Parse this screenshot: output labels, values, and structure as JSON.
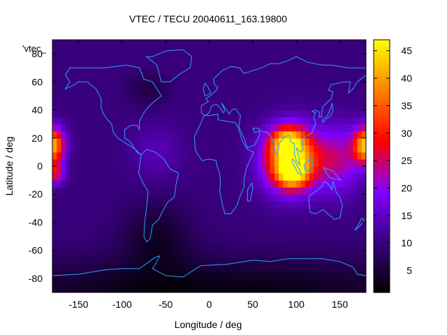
{
  "chart_data": {
    "type": "heatmap",
    "title": "VTEC / TECU 20040611_163.19800",
    "xlabel": "Longitude / deg",
    "ylabel": "Latitude / deg",
    "key_label": "'vtec_",
    "xlim": [
      -180,
      180
    ],
    "ylim": [
      -90,
      90
    ],
    "x_ticks": [
      -150,
      -100,
      -50,
      0,
      50,
      100,
      150
    ],
    "y_ticks": [
      -80,
      -60,
      -40,
      -20,
      0,
      20,
      40,
      60,
      80
    ],
    "colorbar": {
      "range": [
        1,
        47
      ],
      "ticks": [
        5,
        10,
        15,
        20,
        25,
        30,
        35,
        40,
        45
      ],
      "palette": [
        "#000000",
        "#3a0080",
        "#8000ff",
        "#ff0000",
        "#ff8000",
        "#ffff00"
      ]
    },
    "grid": {
      "lon_step_deg": 5,
      "lat_step_deg": 5,
      "background_tecu": 10,
      "enhancements": [
        {
          "name": "equatorial-anomaly-asia",
          "lon": 95,
          "lat": 5,
          "peak_tecu": 36,
          "lon_width": 32,
          "lat_width": 22
        },
        {
          "name": "north-crest-asia",
          "lon": 90,
          "lat": 18,
          "peak_tecu": 18,
          "lon_width": 18,
          "lat_width": 10
        },
        {
          "name": "south-crest-asia",
          "lon": 95,
          "lat": -5,
          "peak_tecu": 20,
          "lon_width": 16,
          "lat_width": 9
        },
        {
          "name": "pacific-dateline-north",
          "lon": -180,
          "lat": 15,
          "peak_tecu": 32,
          "lon_width": 14,
          "lat_width": 13
        },
        {
          "name": "pacific-dateline-wrap",
          "lon": 180,
          "lat": 15,
          "peak_tecu": 32,
          "lon_width": 14,
          "lat_width": 13
        },
        {
          "name": "pacific-dateline-south",
          "lon": -178,
          "lat": -5,
          "peak_tecu": 16,
          "lon_width": 12,
          "lat_width": 8
        },
        {
          "name": "asia-pacific-extension",
          "lon": 150,
          "lat": 5,
          "peak_tecu": 12,
          "lon_width": 25,
          "lat_width": 25
        },
        {
          "name": "america-mild",
          "lon": -60,
          "lat": 10,
          "peak_tecu": 4,
          "lon_width": 30,
          "lat_width": 20
        },
        {
          "name": "south-pacific-depletion",
          "lon": -60,
          "lat": -50,
          "peak_tecu": -6,
          "lon_width": 40,
          "lat_width": 25
        },
        {
          "name": "north-america-depletion",
          "lon": -70,
          "lat": 55,
          "peak_tecu": -4,
          "lon_width": 25,
          "lat_width": 12
        },
        {
          "name": "southern-polar-depletion",
          "lon": 0,
          "lat": -90,
          "peak_tecu": -8,
          "lon_width": 300,
          "lat_width": 25
        }
      ]
    },
    "coastlines": [
      {
        "name": "north-america",
        "points": [
          [
            -165,
            65
          ],
          [
            -160,
            70
          ],
          [
            -140,
            70
          ],
          [
            -120,
            70
          ],
          [
            -95,
            72
          ],
          [
            -80,
            70
          ],
          [
            -75,
            62
          ],
          [
            -65,
            60
          ],
          [
            -60,
            55
          ],
          [
            -55,
            50
          ],
          [
            -65,
            45
          ],
          [
            -70,
            42
          ],
          [
            -75,
            38
          ],
          [
            -80,
            32
          ],
          [
            -80,
            26
          ],
          [
            -83,
            29
          ],
          [
            -90,
            29
          ],
          [
            -97,
            26
          ],
          [
            -97,
            20
          ],
          [
            -92,
            18
          ],
          [
            -88,
            15
          ],
          [
            -83,
            10
          ],
          [
            -78,
            8
          ],
          [
            -85,
            12
          ],
          [
            -90,
            14
          ],
          [
            -95,
            16
          ],
          [
            -105,
            20
          ],
          [
            -110,
            24
          ],
          [
            -112,
            30
          ],
          [
            -118,
            34
          ],
          [
            -122,
            38
          ],
          [
            -124,
            42
          ],
          [
            -124,
            48
          ],
          [
            -130,
            55
          ],
          [
            -140,
            60
          ],
          [
            -150,
            60
          ],
          [
            -155,
            58
          ],
          [
            -165,
            55
          ],
          [
            -160,
            60
          ],
          [
            -165,
            65
          ]
        ]
      },
      {
        "name": "south-america",
        "points": [
          [
            -78,
            8
          ],
          [
            -72,
            12
          ],
          [
            -62,
            10
          ],
          [
            -52,
            5
          ],
          [
            -45,
            -2
          ],
          [
            -35,
            -5
          ],
          [
            -38,
            -13
          ],
          [
            -40,
            -22
          ],
          [
            -48,
            -26
          ],
          [
            -55,
            -34
          ],
          [
            -58,
            -38
          ],
          [
            -65,
            -42
          ],
          [
            -68,
            -52
          ],
          [
            -72,
            -54
          ],
          [
            -75,
            -50
          ],
          [
            -74,
            -40
          ],
          [
            -72,
            -30
          ],
          [
            -70,
            -18
          ],
          [
            -76,
            -12
          ],
          [
            -81,
            -5
          ],
          [
            -80,
            0
          ],
          [
            -78,
            8
          ]
        ]
      },
      {
        "name": "greenland",
        "points": [
          [
            -55,
            60
          ],
          [
            -45,
            60
          ],
          [
            -35,
            65
          ],
          [
            -22,
            70
          ],
          [
            -20,
            78
          ],
          [
            -30,
            83
          ],
          [
            -50,
            82
          ],
          [
            -65,
            78
          ],
          [
            -72,
            78
          ],
          [
            -60,
            72
          ],
          [
            -55,
            60
          ]
        ]
      },
      {
        "name": "eurasia",
        "points": [
          [
            -9,
            43
          ],
          [
            -9,
            38
          ],
          [
            -5,
            36
          ],
          [
            0,
            38
          ],
          [
            3,
            43
          ],
          [
            8,
            44
          ],
          [
            12,
            42
          ],
          [
            16,
            38
          ],
          [
            18,
            40
          ],
          [
            14,
            45
          ],
          [
            20,
            40
          ],
          [
            23,
            37
          ],
          [
            26,
            40
          ],
          [
            30,
            41
          ],
          [
            36,
            36
          ],
          [
            35,
            32
          ],
          [
            34,
            28
          ],
          [
            40,
            20
          ],
          [
            44,
            13
          ],
          [
            52,
            15
          ],
          [
            58,
            22
          ],
          [
            58,
            25
          ],
          [
            52,
            24
          ],
          [
            50,
            27
          ],
          [
            56,
            27
          ],
          [
            60,
            25
          ],
          [
            67,
            24
          ],
          [
            72,
            20
          ],
          [
            77,
            8
          ],
          [
            80,
            13
          ],
          [
            80,
            16
          ],
          [
            87,
            21
          ],
          [
            92,
            22
          ],
          [
            94,
            17
          ],
          [
            98,
            16
          ],
          [
            98,
            8
          ],
          [
            100,
            4
          ],
          [
            104,
            1
          ],
          [
            103,
            7
          ],
          [
            100,
            13
          ],
          [
            105,
            10
          ],
          [
            108,
            12
          ],
          [
            107,
            18
          ],
          [
            110,
            21
          ],
          [
            117,
            23
          ],
          [
            121,
            28
          ],
          [
            122,
            31
          ],
          [
            120,
            35
          ],
          [
            122,
            38
          ],
          [
            118,
            39
          ],
          [
            122,
            40
          ],
          [
            127,
            38
          ],
          [
            126,
            35
          ],
          [
            129,
            35
          ],
          [
            130,
            42
          ],
          [
            140,
            48
          ],
          [
            142,
            53
          ],
          [
            137,
            54
          ],
          [
            140,
            58
          ],
          [
            155,
            60
          ],
          [
            162,
            60
          ],
          [
            160,
            52
          ],
          [
            165,
            55
          ],
          [
            170,
            60
          ],
          [
            180,
            65
          ],
          [
            180,
            70
          ],
          [
            160,
            70
          ],
          [
            140,
            72
          ],
          [
            130,
            72
          ],
          [
            113,
            74
          ],
          [
            100,
            78
          ],
          [
            90,
            75
          ],
          [
            80,
            73
          ],
          [
            70,
            73
          ],
          [
            60,
            70
          ],
          [
            50,
            68
          ],
          [
            40,
            66
          ],
          [
            35,
            70
          ],
          [
            25,
            71
          ],
          [
            15,
            68
          ],
          [
            5,
            62
          ],
          [
            6,
            58
          ],
          [
            10,
            56
          ],
          [
            8,
            54
          ],
          [
            3,
            51
          ],
          [
            -4,
            48
          ],
          [
            -1,
            46
          ],
          [
            -9,
            43
          ]
        ]
      },
      {
        "name": "africa",
        "points": [
          [
            -17,
            21
          ],
          [
            -16,
            12
          ],
          [
            -13,
            8
          ],
          [
            -8,
            4
          ],
          [
            0,
            5
          ],
          [
            8,
            4
          ],
          [
            9,
            0
          ],
          [
            12,
            -5
          ],
          [
            13,
            -12
          ],
          [
            12,
            -17
          ],
          [
            15,
            -27
          ],
          [
            18,
            -34
          ],
          [
            25,
            -34
          ],
          [
            32,
            -28
          ],
          [
            35,
            -22
          ],
          [
            40,
            -15
          ],
          [
            40,
            -10
          ],
          [
            43,
            -1
          ],
          [
            51,
            10
          ],
          [
            44,
            12
          ],
          [
            38,
            18
          ],
          [
            33,
            28
          ],
          [
            30,
            31
          ],
          [
            20,
            32
          ],
          [
            10,
            33
          ],
          [
            10,
            37
          ],
          [
            0,
            36
          ],
          [
            -6,
            36
          ],
          [
            -10,
            30
          ],
          [
            -17,
            21
          ]
        ]
      },
      {
        "name": "australia",
        "points": [
          [
            114,
            -22
          ],
          [
            116,
            -33
          ],
          [
            122,
            -34
          ],
          [
            131,
            -31
          ],
          [
            138,
            -35
          ],
          [
            144,
            -38
          ],
          [
            150,
            -37
          ],
          [
            153,
            -28
          ],
          [
            150,
            -22
          ],
          [
            146,
            -19
          ],
          [
            142,
            -11
          ],
          [
            141,
            -17
          ],
          [
            136,
            -12
          ],
          [
            132,
            -11
          ],
          [
            129,
            -15
          ],
          [
            122,
            -18
          ],
          [
            114,
            -22
          ]
        ]
      },
      {
        "name": "madagascar",
        "points": [
          [
            44,
            -25
          ],
          [
            47,
            -25
          ],
          [
            50,
            -16
          ],
          [
            49,
            -12
          ],
          [
            44,
            -17
          ],
          [
            44,
            -25
          ]
        ]
      },
      {
        "name": "sumatra",
        "points": [
          [
            95,
            5
          ],
          [
            98,
            4
          ],
          [
            104,
            -3
          ],
          [
            106,
            -6
          ],
          [
            102,
            -5
          ],
          [
            96,
            2
          ],
          [
            95,
            5
          ]
        ]
      },
      {
        "name": "borneo",
        "points": [
          [
            109,
            1
          ],
          [
            110,
            -3
          ],
          [
            116,
            -4
          ],
          [
            119,
            1
          ],
          [
            117,
            7
          ],
          [
            114,
            4
          ],
          [
            109,
            1
          ]
        ]
      },
      {
        "name": "new-guinea",
        "points": [
          [
            131,
            -1
          ],
          [
            141,
            -3
          ],
          [
            151,
            -10
          ],
          [
            143,
            -9
          ],
          [
            138,
            -8
          ],
          [
            131,
            -1
          ]
        ]
      },
      {
        "name": "japan",
        "points": [
          [
            130,
            31
          ],
          [
            135,
            34
          ],
          [
            140,
            36
          ],
          [
            142,
            40
          ],
          [
            141,
            45
          ],
          [
            140,
            42
          ],
          [
            136,
            36
          ],
          [
            130,
            33
          ],
          [
            130,
            31
          ]
        ]
      },
      {
        "name": "british-isles",
        "points": [
          [
            -5,
            50
          ],
          [
            2,
            52
          ],
          [
            -2,
            57
          ],
          [
            -5,
            59
          ],
          [
            -7,
            55
          ],
          [
            -5,
            50
          ]
        ]
      },
      {
        "name": "new-zealand",
        "points": [
          [
            167,
            -46
          ],
          [
            172,
            -41
          ],
          [
            175,
            -37
          ],
          [
            178,
            -38
          ],
          [
            174,
            -42
          ],
          [
            167,
            -46
          ]
        ]
      },
      {
        "name": "antarctica",
        "points": [
          [
            -180,
            -78
          ],
          [
            -150,
            -77
          ],
          [
            -120,
            -74
          ],
          [
            -100,
            -73
          ],
          [
            -80,
            -73
          ],
          [
            -62,
            -65
          ],
          [
            -57,
            -64
          ],
          [
            -60,
            -68
          ],
          [
            -65,
            -73
          ],
          [
            -50,
            -78
          ],
          [
            -30,
            -79
          ],
          [
            -10,
            -71
          ],
          [
            20,
            -70
          ],
          [
            50,
            -67
          ],
          [
            70,
            -68
          ],
          [
            90,
            -66
          ],
          [
            110,
            -66
          ],
          [
            130,
            -66
          ],
          [
            150,
            -68
          ],
          [
            165,
            -72
          ],
          [
            170,
            -77
          ],
          [
            180,
            -78
          ]
        ]
      }
    ]
  }
}
